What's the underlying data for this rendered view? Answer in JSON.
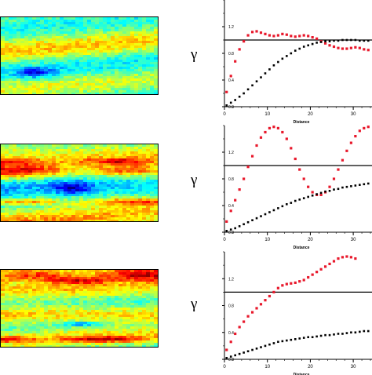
{
  "colors": {
    "series_a": "#e8192c",
    "series_b": "#000000",
    "reference": "#000000"
  },
  "fields": [
    {
      "name": "field-1",
      "palette": "jet",
      "dominant": "green-cyan"
    },
    {
      "name": "field-2",
      "palette": "jet",
      "dominant": "green-cyan-red"
    },
    {
      "name": "field-3",
      "palette": "jet",
      "dominant": "green-yellow"
    }
  ],
  "chart_data": [
    {
      "type": "scatter",
      "ylabel": "γ",
      "xlabel": "Distance",
      "xticks": [
        "0",
        "10",
        "20",
        "30"
      ],
      "yticks": [
        "0.0",
        "0.4",
        "0.8",
        "1.2"
      ],
      "xlim": [
        0,
        34
      ],
      "ylim": [
        0,
        1.6
      ],
      "reference_line": 1.0,
      "series": [
        {
          "color": "#e8192c",
          "x": [
            0.5,
            1.5,
            2.5,
            3.5,
            4.5,
            5.5,
            6.5,
            7.5,
            8.5,
            9.5,
            10.5,
            11.5,
            12.5,
            13.5,
            14.5,
            15.5,
            16.5,
            17.5,
            18.5,
            19.5,
            20.5,
            21.5,
            22.5,
            23.5,
            24.5,
            25.5,
            26.5,
            27.5,
            28.5,
            29.5,
            30.5,
            31.5,
            32.5,
            33.5
          ],
          "y": [
            0.22,
            0.46,
            0.68,
            0.86,
            0.98,
            1.07,
            1.12,
            1.13,
            1.11,
            1.09,
            1.07,
            1.06,
            1.07,
            1.09,
            1.08,
            1.06,
            1.05,
            1.06,
            1.07,
            1.06,
            1.04,
            1.02,
            0.98,
            0.95,
            0.92,
            0.9,
            0.88,
            0.87,
            0.87,
            0.88,
            0.89,
            0.88,
            0.86,
            0.85
          ]
        },
        {
          "color": "#000000",
          "x": [
            0.5,
            1.5,
            2.5,
            3.5,
            4.5,
            5.5,
            6.5,
            7.5,
            8.5,
            9.5,
            10.5,
            11.5,
            12.5,
            13.5,
            14.5,
            15.5,
            16.5,
            17.5,
            18.5,
            19.5,
            20.5,
            21.5,
            22.5,
            23.5,
            24.5,
            25.5,
            26.5,
            27.5,
            28.5,
            29.5,
            30.5,
            31.5,
            32.5,
            33.5
          ],
          "y": [
            0.02,
            0.06,
            0.1,
            0.15,
            0.2,
            0.26,
            0.32,
            0.38,
            0.44,
            0.5,
            0.56,
            0.62,
            0.67,
            0.72,
            0.76,
            0.8,
            0.84,
            0.87,
            0.9,
            0.92,
            0.94,
            0.96,
            0.97,
            0.98,
            0.98,
            0.99,
            0.99,
            1.0,
            1.0,
            1.0,
            1.0,
            0.99,
            0.99,
            0.99
          ]
        }
      ]
    },
    {
      "type": "scatter",
      "ylabel": "γ",
      "xlabel": "Distance",
      "xticks": [
        "0",
        "10",
        "20",
        "30"
      ],
      "yticks": [
        "0.0",
        "0.4",
        "0.8",
        "1.2"
      ],
      "xlim": [
        0,
        34
      ],
      "ylim": [
        0,
        1.6
      ],
      "reference_line": 1.0,
      "series": [
        {
          "color": "#e8192c",
          "x": [
            0.5,
            1.5,
            2.5,
            3.5,
            4.5,
            5.5,
            6.5,
            7.5,
            8.5,
            9.5,
            10.5,
            11.5,
            12.5,
            13.5,
            14.5,
            15.5,
            16.5,
            17.5,
            18.5,
            19.5,
            20.5,
            21.5,
            22.5,
            23.5,
            24.5,
            25.5,
            26.5,
            27.5,
            28.5,
            29.5,
            30.5,
            31.5,
            32.5,
            33.5
          ],
          "y": [
            0.16,
            0.32,
            0.48,
            0.64,
            0.8,
            0.98,
            1.14,
            1.3,
            1.42,
            1.5,
            1.56,
            1.58,
            1.56,
            1.5,
            1.4,
            1.26,
            1.1,
            0.94,
            0.8,
            0.68,
            0.6,
            0.56,
            0.56,
            0.6,
            0.68,
            0.8,
            0.94,
            1.08,
            1.22,
            1.34,
            1.44,
            1.52,
            1.56,
            1.58
          ]
        },
        {
          "color": "#000000",
          "x": [
            0.5,
            1.5,
            2.5,
            3.5,
            4.5,
            5.5,
            6.5,
            7.5,
            8.5,
            9.5,
            10.5,
            11.5,
            12.5,
            13.5,
            14.5,
            15.5,
            16.5,
            17.5,
            18.5,
            19.5,
            20.5,
            21.5,
            22.5,
            23.5,
            24.5,
            25.5,
            26.5,
            27.5,
            28.5,
            29.5,
            30.5,
            31.5,
            32.5,
            33.5
          ],
          "y": [
            0.02,
            0.04,
            0.06,
            0.09,
            0.12,
            0.15,
            0.18,
            0.21,
            0.24,
            0.27,
            0.3,
            0.33,
            0.36,
            0.39,
            0.42,
            0.44,
            0.47,
            0.49,
            0.51,
            0.53,
            0.55,
            0.57,
            0.59,
            0.61,
            0.62,
            0.64,
            0.65,
            0.67,
            0.68,
            0.69,
            0.7,
            0.71,
            0.72,
            0.73
          ]
        }
      ]
    },
    {
      "type": "scatter",
      "ylabel": "γ",
      "xlabel": "Distance",
      "xticks": [
        "0",
        "10",
        "20",
        "30"
      ],
      "yticks": [
        "0.0",
        "0.4",
        "0.8",
        "1.2"
      ],
      "xlim": [
        0,
        34
      ],
      "ylim": [
        0,
        1.6
      ],
      "reference_line": 1.0,
      "series": [
        {
          "color": "#e8192c",
          "x": [
            0.5,
            1.5,
            2.5,
            3.5,
            4.5,
            5.5,
            6.5,
            7.5,
            8.5,
            9.5,
            10.5,
            11.5,
            12.5,
            13.5,
            14.5,
            15.5,
            16.5,
            17.5,
            18.5,
            19.5,
            20.5,
            21.5,
            22.5,
            23.5,
            24.5,
            25.5,
            26.5,
            27.5,
            28.5,
            29.5,
            30.5
          ],
          "y": [
            0.14,
            0.26,
            0.38,
            0.48,
            0.56,
            0.64,
            0.7,
            0.76,
            0.82,
            0.88,
            0.94,
            1.0,
            1.06,
            1.1,
            1.12,
            1.13,
            1.14,
            1.16,
            1.18,
            1.22,
            1.26,
            1.3,
            1.34,
            1.38,
            1.42,
            1.46,
            1.5,
            1.52,
            1.53,
            1.52,
            1.5
          ]
        },
        {
          "color": "#000000",
          "x": [
            0.5,
            1.5,
            2.5,
            3.5,
            4.5,
            5.5,
            6.5,
            7.5,
            8.5,
            9.5,
            10.5,
            11.5,
            12.5,
            13.5,
            14.5,
            15.5,
            16.5,
            17.5,
            18.5,
            19.5,
            20.5,
            21.5,
            22.5,
            23.5,
            24.5,
            25.5,
            26.5,
            27.5,
            28.5,
            29.5,
            30.5,
            31.5,
            32.5,
            33.5
          ],
          "y": [
            0.02,
            0.04,
            0.06,
            0.08,
            0.1,
            0.12,
            0.14,
            0.16,
            0.18,
            0.2,
            0.22,
            0.24,
            0.26,
            0.27,
            0.28,
            0.29,
            0.3,
            0.31,
            0.32,
            0.33,
            0.33,
            0.34,
            0.35,
            0.36,
            0.36,
            0.37,
            0.38,
            0.38,
            0.39,
            0.4,
            0.4,
            0.41,
            0.42,
            0.42
          ]
        }
      ]
    }
  ]
}
